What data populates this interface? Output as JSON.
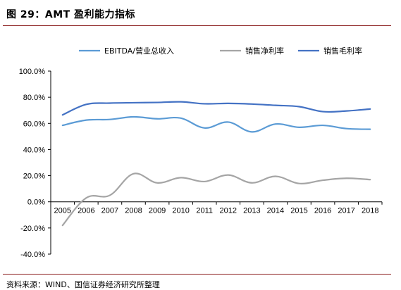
{
  "figure": {
    "title": "图 29：AMT 盈利能力指标",
    "source": "资料来源：WIND、国信证券经济研究所整理"
  },
  "chart_data": {
    "type": "line",
    "title": "图 29：AMT 盈利能力指标",
    "xlabel": "",
    "ylabel": "",
    "ylim": [
      -40,
      100
    ],
    "yticks": [
      "100.0%",
      "80.0%",
      "60.0%",
      "40.0%",
      "20.0%",
      "0.0%",
      "-20.0%",
      "-40.0%"
    ],
    "x": [
      "2005",
      "2006",
      "2007",
      "2008",
      "2009",
      "2010",
      "2011",
      "2012",
      "2013",
      "2014",
      "2015",
      "2016",
      "2017",
      "2018"
    ],
    "legend_position": "top",
    "grid": false,
    "series": [
      {
        "name": "EBITDA/营业总收入",
        "color": "#5b9bd5",
        "values": [
          58.5,
          62.5,
          63.0,
          65.0,
          63.5,
          64.0,
          56.5,
          61.0,
          53.5,
          59.5,
          57.0,
          58.5,
          56.0,
          55.5
        ]
      },
      {
        "name": "销售净利率",
        "color": "#a5a5a5",
        "values": [
          -18.0,
          3.0,
          5.0,
          21.5,
          14.5,
          18.5,
          15.5,
          20.5,
          14.5,
          19.5,
          14.0,
          16.5,
          18.0,
          17.0
        ]
      },
      {
        "name": "销售毛利率",
        "color": "#4472c4",
        "values": [
          66.5,
          74.5,
          75.5,
          75.8,
          76.0,
          76.5,
          75.0,
          75.3,
          74.8,
          73.8,
          72.8,
          69.0,
          69.5,
          71.0
        ]
      }
    ]
  }
}
